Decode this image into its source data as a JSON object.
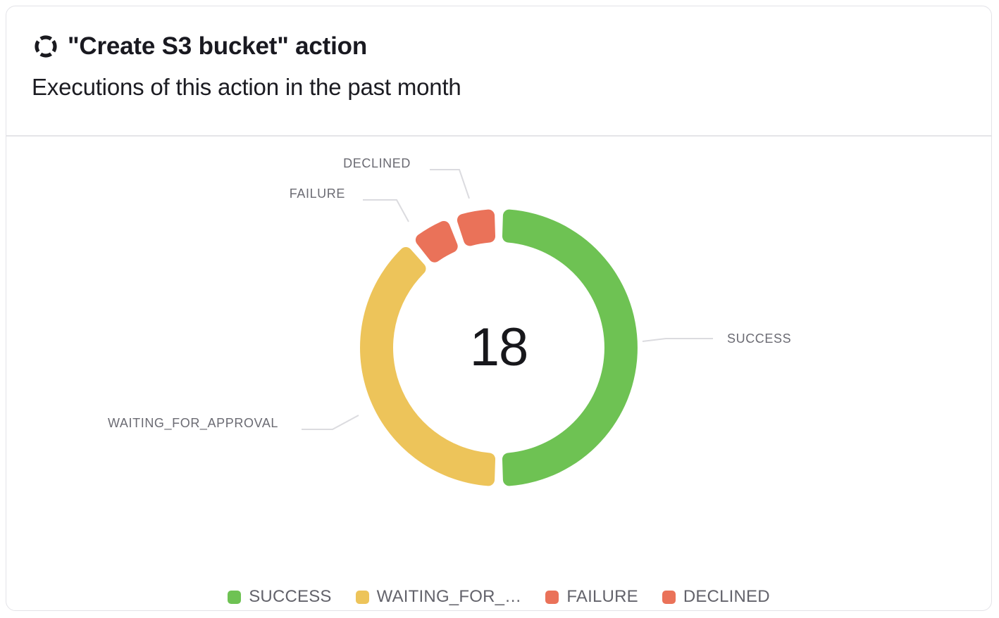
{
  "header": {
    "title": "\"Create S3 bucket\" action",
    "subtitle": "Executions of this action in the past month",
    "icon": "dashed-circle-action-icon"
  },
  "chart_data": {
    "type": "pie",
    "variant": "donut",
    "title": "Executions of this action in the past month",
    "center_value": "18",
    "total": 18,
    "start_angle_deg": 0,
    "direction": "clockwise",
    "legend_position": "bottom",
    "segments": [
      {
        "name": "SUCCESS",
        "value": 9,
        "color": "#6EC253"
      },
      {
        "name": "WAITING_FOR_APPROVAL",
        "value": 7,
        "color": "#EDC45A"
      },
      {
        "name": "FAILURE",
        "value": 1,
        "color": "#EA7259"
      },
      {
        "name": "DECLINED",
        "value": 1,
        "color": "#EA7259"
      }
    ],
    "legend": [
      {
        "label": "SUCCESS",
        "color": "#6EC253"
      },
      {
        "label": "WAITING_FOR_…",
        "color": "#EDC45A"
      },
      {
        "label": "FAILURE",
        "color": "#EA7259"
      },
      {
        "label": "DECLINED",
        "color": "#EA7259"
      }
    ]
  },
  "colors": {
    "success": "#6EC253",
    "waiting_for_approval": "#EDC45A",
    "failure": "#EA7259",
    "declined": "#EA7259",
    "label_gray": "#6B6B73",
    "leader_line": "#DBDBDF",
    "card_border": "#E3E3E8",
    "text_dark": "#17171B"
  }
}
